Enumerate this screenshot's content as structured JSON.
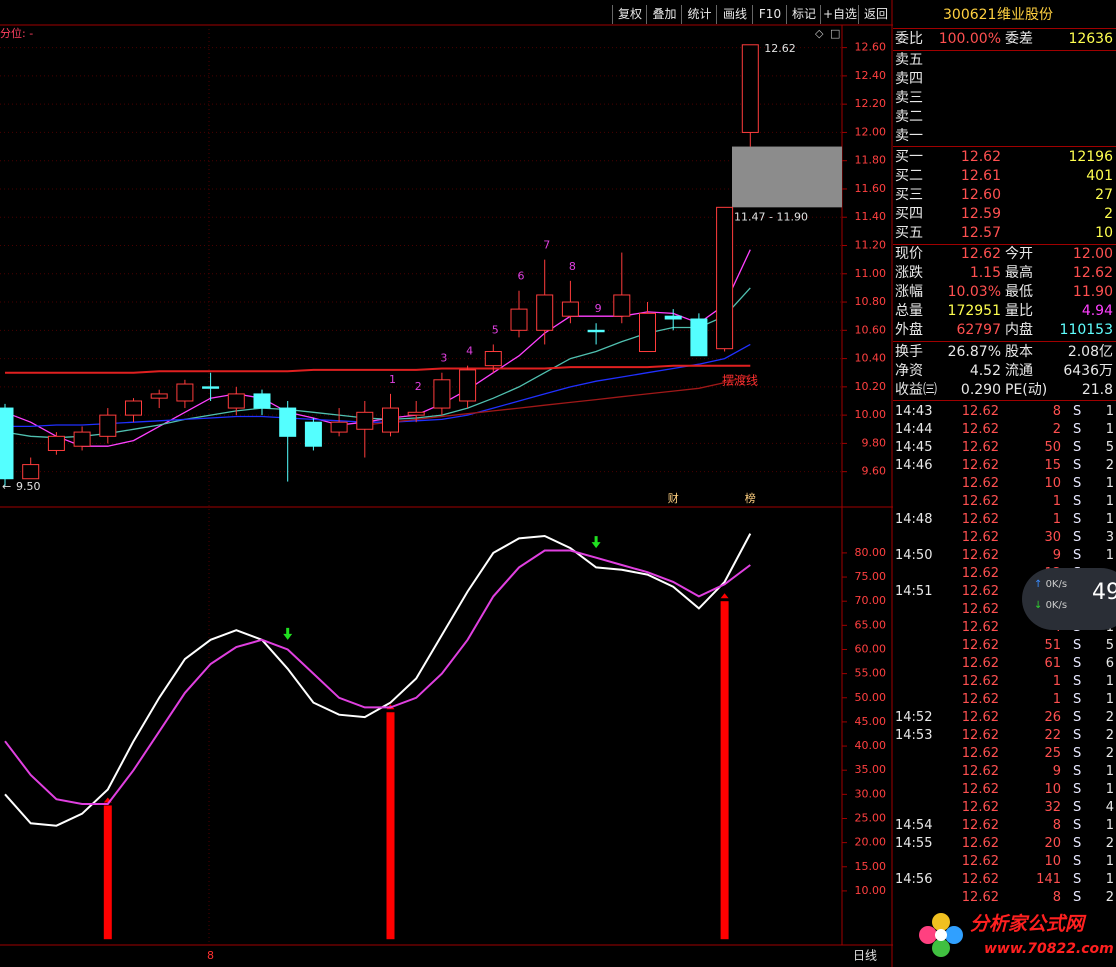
{
  "toolbar": [
    "复权",
    "叠加",
    "统计",
    "画线",
    "F10",
    "标记",
    "+自选",
    "返回"
  ],
  "indicator_label": "分位: -",
  "chart_data": [
    {
      "type": "candlestick",
      "open": [
        10.05,
        9.55,
        9.75,
        9.78,
        9.85,
        10.0,
        10.12,
        10.1,
        10.2,
        10.05,
        10.15,
        10.05,
        9.95,
        9.88,
        9.9,
        9.88,
        10.0,
        10.05,
        10.1,
        10.35,
        10.6,
        10.6,
        10.7,
        10.6,
        10.7,
        10.45,
        10.7,
        10.68,
        10.47,
        12.0
      ],
      "high": [
        10.08,
        9.7,
        9.88,
        9.92,
        10.05,
        10.12,
        10.18,
        10.25,
        10.3,
        10.2,
        10.18,
        10.1,
        9.98,
        10.05,
        10.1,
        10.15,
        10.1,
        10.3,
        10.35,
        10.5,
        10.88,
        11.1,
        10.95,
        10.65,
        11.15,
        10.8,
        10.75,
        10.72,
        11.47,
        12.62
      ],
      "low": [
        9.5,
        9.55,
        9.72,
        9.75,
        9.8,
        9.95,
        10.05,
        10.05,
        10.1,
        10.0,
        10.0,
        9.53,
        9.75,
        9.85,
        9.7,
        9.85,
        9.95,
        10.0,
        10.05,
        10.3,
        10.55,
        10.5,
        10.65,
        10.5,
        10.65,
        10.45,
        10.6,
        10.42,
        10.45,
        11.9
      ],
      "close": [
        9.55,
        9.65,
        9.85,
        9.88,
        10.0,
        10.1,
        10.15,
        10.22,
        10.19,
        10.15,
        10.05,
        9.85,
        9.78,
        9.95,
        10.02,
        10.05,
        10.02,
        10.25,
        10.32,
        10.45,
        10.75,
        10.85,
        10.8,
        10.59,
        10.85,
        10.72,
        10.68,
        10.42,
        11.47,
        12.62
      ],
      "up_color": "#ff3c3c",
      "down_color": "#54ffff",
      "count_color": "#e040e0",
      "lines": [
        {
          "color": "#ff40ff",
          "values": [
            10.02,
            9.95,
            9.85,
            9.78,
            9.78,
            9.82,
            9.92,
            10.02,
            10.12,
            10.15,
            10.12,
            10.02,
            9.98,
            9.93,
            9.95,
            9.98,
            10.0,
            10.08,
            10.18,
            10.3,
            10.42,
            10.58,
            10.7,
            10.7,
            10.7,
            10.73,
            10.72,
            10.65,
            10.78,
            11.17
          ]
        },
        {
          "color": "#50c0b0",
          "values": [
            9.88,
            9.85,
            9.84,
            9.85,
            9.87,
            9.9,
            9.93,
            9.97,
            10.0,
            10.03,
            10.05,
            10.04,
            10.02,
            10.0,
            9.98,
            9.97,
            9.98,
            10.0,
            10.05,
            10.12,
            10.2,
            10.3,
            10.4,
            10.45,
            10.52,
            10.58,
            10.62,
            10.62,
            10.7,
            10.9
          ]
        },
        {
          "color": "#2030ff",
          "values": [
            9.92,
            9.92,
            9.93,
            9.93,
            9.94,
            9.95,
            9.96,
            9.97,
            9.98,
            9.99,
            9.99,
            9.98,
            9.97,
            9.96,
            9.95,
            9.95,
            9.96,
            9.97,
            10.0,
            10.05,
            10.1,
            10.15,
            10.2,
            10.24,
            10.27,
            10.3,
            10.33,
            10.36,
            10.4,
            10.5
          ]
        },
        {
          "color": "#e02020",
          "values": [
            10.3,
            10.3,
            10.3,
            10.3,
            10.3,
            10.3,
            10.31,
            10.31,
            10.31,
            10.31,
            10.31,
            10.31,
            10.32,
            10.32,
            10.32,
            10.32,
            10.32,
            10.33,
            10.33,
            10.33,
            10.33,
            10.33,
            10.34,
            10.34,
            10.34,
            10.34,
            10.35,
            10.35,
            10.35,
            10.35
          ]
        },
        {
          "color": "#a01818",
          "values": [
            null,
            null,
            null,
            null,
            null,
            null,
            null,
            null,
            null,
            null,
            null,
            null,
            null,
            null,
            9.93,
            9.95,
            9.97,
            9.99,
            10.01,
            10.03,
            10.05,
            10.07,
            10.09,
            10.11,
            10.13,
            10.15,
            10.17,
            10.19,
            10.23,
            10.28
          ]
        }
      ],
      "count_labels": [
        null,
        null,
        null,
        null,
        null,
        null,
        null,
        null,
        null,
        null,
        null,
        null,
        null,
        null,
        null,
        "1",
        "2",
        "3",
        "4",
        "5",
        "6",
        "7",
        "8",
        "9",
        null,
        null,
        null,
        null,
        null,
        null
      ],
      "event_labels": [
        null,
        null,
        null,
        null,
        null,
        null,
        null,
        null,
        null,
        null,
        null,
        null,
        null,
        null,
        null,
        null,
        null,
        null,
        null,
        null,
        null,
        null,
        null,
        null,
        null,
        null,
        "财",
        null,
        null,
        "榜"
      ],
      "zone": {
        "low": 11.47,
        "high": 11.9,
        "label": "11.47 - 11.90"
      },
      "high_label": "12.62",
      "low_label": "9.50",
      "line_label": "摆渡线",
      "ylim": [
        9.35,
        12.76
      ],
      "yticks": [
        {
          "value": 12.6,
          "label": "12.60"
        },
        {
          "value": 12.4,
          "label": "12.40"
        },
        {
          "value": 12.2,
          "label": "12.20"
        },
        {
          "value": 12.0,
          "label": "12.00"
        },
        {
          "value": 11.8,
          "label": "11.80"
        },
        {
          "value": 11.6,
          "label": "11.60"
        },
        {
          "value": 11.4,
          "label": "11.40"
        },
        {
          "value": 11.2,
          "label": "11.20"
        },
        {
          "value": 11.0,
          "label": "11.00"
        },
        {
          "value": 10.8,
          "label": "10.80"
        },
        {
          "value": 10.6,
          "label": "10.60"
        },
        {
          "value": 10.4,
          "label": "10.40"
        },
        {
          "value": 10.2,
          "label": "10.20"
        },
        {
          "value": 10.0,
          "label": "10.00"
        },
        {
          "value": 9.8,
          "label": "9.80"
        },
        {
          "value": 9.6,
          "label": "9.60"
        }
      ],
      "grid": true
    },
    {
      "type": "line",
      "series": [
        {
          "color": "#ffffff",
          "values": [
            30,
            24,
            23.5,
            26,
            31,
            41,
            50,
            58,
            62,
            64,
            62,
            56,
            49,
            46.5,
            46,
            49,
            54,
            63,
            72,
            80,
            83,
            83.5,
            81,
            77,
            76.5,
            75.5,
            73,
            68.5,
            74,
            84
          ]
        },
        {
          "color": "#e040e0",
          "values": [
            41,
            34,
            29,
            28,
            28,
            35,
            43,
            51,
            57,
            60.5,
            62,
            60,
            55,
            50,
            48,
            48,
            50,
            55,
            62,
            71,
            77,
            80.5,
            80.5,
            79,
            77.5,
            76,
            74,
            71,
            73.5,
            77.5
          ]
        }
      ],
      "buy_bars": [
        null,
        null,
        null,
        null,
        27.7,
        null,
        null,
        null,
        null,
        null,
        null,
        null,
        null,
        null,
        null,
        47,
        null,
        null,
        null,
        null,
        null,
        null,
        null,
        null,
        null,
        null,
        null,
        null,
        70,
        null
      ],
      "sell_marks": [
        null,
        null,
        null,
        null,
        null,
        null,
        null,
        null,
        null,
        null,
        null,
        62,
        null,
        null,
        null,
        null,
        null,
        null,
        null,
        null,
        null,
        null,
        null,
        81,
        null,
        null,
        null,
        null,
        null,
        null
      ],
      "bar_color": "#ff0000",
      "sell_color": "#20e020",
      "ylim": [
        -1.2,
        89.3
      ],
      "yticks": [
        {
          "value": 80,
          "label": "80.00"
        },
        {
          "value": 75,
          "label": "75.00"
        },
        {
          "value": 70,
          "label": "70.00"
        },
        {
          "value": 65,
          "label": "65.00"
        },
        {
          "value": 60,
          "label": "60.00"
        },
        {
          "value": 55,
          "label": "55.00"
        },
        {
          "value": 50,
          "label": "50.00"
        },
        {
          "value": 45,
          "label": "45.00"
        },
        {
          "value": 40,
          "label": "40.00"
        },
        {
          "value": 35,
          "label": "35.00"
        },
        {
          "value": 30,
          "label": "30.00"
        },
        {
          "value": 25,
          "label": "25.00"
        },
        {
          "value": 20,
          "label": "20.00"
        },
        {
          "value": 15,
          "label": "15.00"
        },
        {
          "value": 10,
          "label": "10.00"
        }
      ],
      "grid": true,
      "period": "日线",
      "x_marker": "8"
    }
  ],
  "quote": {
    "code": "300621",
    "name": "维业股份",
    "ratio": [
      "委比",
      "100.00%",
      "委差",
      "12636"
    ],
    "sells": [
      "卖五",
      "卖四",
      "卖三",
      "卖二",
      "卖一"
    ],
    "buys": [
      [
        "买一",
        "12.62",
        "12196"
      ],
      [
        "买二",
        "12.61",
        "401"
      ],
      [
        "买三",
        "12.60",
        "27"
      ],
      [
        "买四",
        "12.59",
        "2"
      ],
      [
        "买五",
        "12.57",
        "10"
      ]
    ],
    "rows": [
      {
        "cells": [
          "现价",
          "12.62",
          "今开",
          "12.00"
        ],
        "colors": [
          "#ff5050",
          "#ff5050"
        ]
      },
      {
        "cells": [
          "涨跌",
          "1.15",
          "最高",
          "12.62"
        ],
        "colors": [
          "#ff5050",
          "#ff5050"
        ]
      },
      {
        "cells": [
          "涨幅",
          "10.03%",
          "最低",
          "11.90"
        ],
        "colors": [
          "#ff5050",
          "#ff5050"
        ]
      },
      {
        "cells": [
          "总量",
          "172951",
          "量比",
          "4.94"
        ],
        "colors": [
          "#ffff50",
          "#ff40ff"
        ]
      },
      {
        "cells": [
          "外盘",
          "62797",
          "内盘",
          "110153"
        ],
        "colors": [
          "#ff5050",
          "#60ffff"
        ]
      },
      {
        "cells": [
          "换手",
          "26.87%",
          "股本",
          "2.08亿"
        ],
        "colors": [
          "#e8e8e8",
          "#e8e8e8"
        ]
      },
      {
        "cells": [
          "净资",
          "4.52",
          "流通",
          "6436万"
        ],
        "colors": [
          "#e8e8e8",
          "#e8e8e8"
        ]
      },
      {
        "cells": [
          "收益㈢",
          "0.290",
          "PE(动)",
          "21.8"
        ],
        "colors": [
          "#e8e8e8",
          "#e8e8e8"
        ]
      }
    ],
    "trades": [
      [
        "14:43",
        "12.62",
        "8",
        "S",
        "1"
      ],
      [
        "14:44",
        "12.62",
        "2",
        "S",
        "1"
      ],
      [
        "14:45",
        "12.62",
        "50",
        "S",
        "5"
      ],
      [
        "14:46",
        "12.62",
        "15",
        "S",
        "2"
      ],
      [
        null,
        "12.62",
        "10",
        "S",
        "1"
      ],
      [
        null,
        "12.62",
        "1",
        "S",
        "1"
      ],
      [
        "14:48",
        "12.62",
        "1",
        "S",
        "1"
      ],
      [
        null,
        "12.62",
        "30",
        "S",
        "3"
      ],
      [
        "14:50",
        "12.62",
        "9",
        "S",
        "1"
      ],
      [
        null,
        "12.62",
        "12",
        "S",
        null
      ],
      [
        "14:51",
        "12.62",
        null,
        null,
        null
      ],
      [
        null,
        "12.62",
        null,
        null,
        null
      ],
      [
        null,
        "12.62",
        "4",
        "S",
        "1"
      ],
      [
        null,
        "12.62",
        "51",
        "S",
        "5"
      ],
      [
        null,
        "12.62",
        "61",
        "S",
        "6"
      ],
      [
        null,
        "12.62",
        "1",
        "S",
        "1"
      ],
      [
        null,
        "12.62",
        "1",
        "S",
        "1"
      ],
      [
        "14:52",
        "12.62",
        "26",
        "S",
        "2"
      ],
      [
        "14:53",
        "12.62",
        "22",
        "S",
        "2"
      ],
      [
        null,
        "12.62",
        "25",
        "S",
        "2"
      ],
      [
        null,
        "12.62",
        "9",
        "S",
        "1"
      ],
      [
        null,
        "12.62",
        "10",
        "S",
        "1"
      ],
      [
        null,
        "12.62",
        "32",
        "S",
        "4"
      ],
      [
        "14:54",
        "12.62",
        "8",
        "S",
        "1"
      ],
      [
        "14:55",
        "12.62",
        "20",
        "S",
        "2"
      ],
      [
        null,
        "12.62",
        "10",
        "S",
        "1"
      ],
      [
        "14:56",
        "12.62",
        "141",
        "S",
        "1"
      ],
      [
        null,
        "12.62",
        "8",
        "S",
        "2"
      ]
    ]
  },
  "speed_widget": {
    "up": "0K/s",
    "down": "0K/s",
    "value": "49"
  },
  "watermark": {
    "title": "分析家公式网",
    "url": "www.70822.com"
  }
}
